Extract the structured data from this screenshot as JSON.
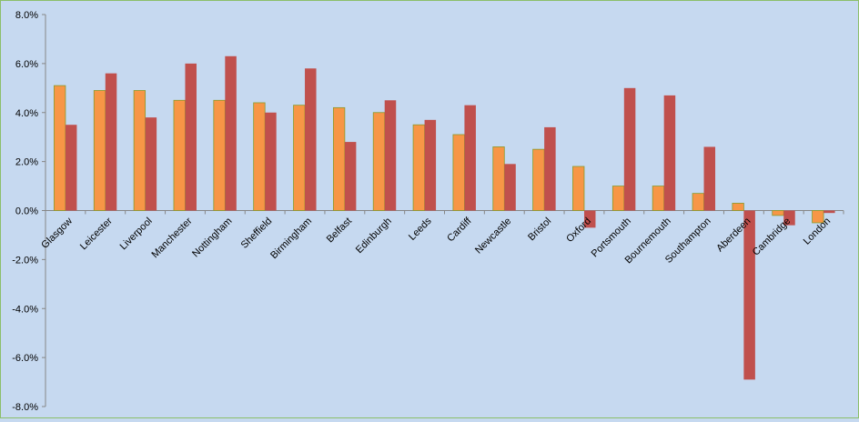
{
  "chart_data": {
    "type": "bar",
    "title": "",
    "xlabel": "",
    "ylabel": "",
    "ylim": [
      -0.08,
      0.08
    ],
    "ytick_step": 0.02,
    "ytick_labels": [
      "8.0%",
      "6.0%",
      "4.0%",
      "2.0%",
      "0.0%",
      "-2.0%",
      "-4.0%",
      "-6.0%",
      "-8.0%"
    ],
    "grid": false,
    "legend": "none",
    "categories": [
      "Glasgow",
      "Leicester",
      "Liverpool",
      "Manchester",
      "Nottingham",
      "Sheffield",
      "Birmingham",
      "Belfast",
      "Edinburgh",
      "Leeds",
      "Cardiff",
      "Newcastle",
      "Bristol",
      "Oxford",
      "Portsmouth",
      "Bournemouth",
      "Southampton",
      "Aberdeen",
      "Cambridge",
      "London"
    ],
    "series": [
      {
        "color": "#f79646",
        "stroke": "#8a9a2a",
        "values": [
          0.051,
          0.049,
          0.049,
          0.045,
          0.045,
          0.044,
          0.043,
          0.042,
          0.04,
          0.035,
          0.031,
          0.026,
          0.025,
          0.018,
          0.01,
          0.01,
          0.007,
          0.003,
          -0.002,
          -0.005
        ]
      },
      {
        "color": "#c0504d",
        "values": [
          0.035,
          0.056,
          0.038,
          0.06,
          0.063,
          0.04,
          0.058,
          0.028,
          0.045,
          0.037,
          0.043,
          0.019,
          0.034,
          -0.007,
          0.05,
          0.047,
          0.026,
          -0.069,
          -0.006,
          -0.001
        ]
      }
    ]
  }
}
